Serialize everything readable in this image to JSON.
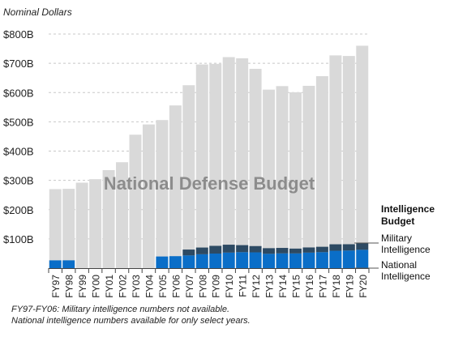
{
  "chart_data": {
    "type": "bar",
    "stacked": true,
    "title": "",
    "ylabel": "Nominal Dollars",
    "xlabel": "",
    "ylim": [
      0,
      800
    ],
    "yticks": [
      0,
      100,
      200,
      300,
      400,
      500,
      600,
      700,
      800
    ],
    "ytick_labels": [
      "",
      "$100B",
      "$200B",
      "$300B",
      "$400B",
      "$500B",
      "$600B",
      "$700B",
      "$800B"
    ],
    "grid": true,
    "categories": [
      "FY97",
      "FY98",
      "FY99",
      "FY00",
      "FY01",
      "FY02",
      "FY03",
      "FY04",
      "FY05",
      "FY06",
      "FY07",
      "FY08",
      "FY09",
      "FY10",
      "FY11",
      "FY12",
      "FY13",
      "FY14",
      "FY15",
      "FY16",
      "FY17",
      "FY18",
      "FY19",
      "FY20"
    ],
    "series": [
      {
        "name": "National Intelligence",
        "color": "#0a6ec8",
        "values": [
          26.6,
          26.7,
          null,
          null,
          null,
          null,
          null,
          null,
          39.8,
          40.9,
          43.5,
          47.5,
          49.8,
          53.1,
          54.6,
          53.9,
          49.0,
          50.5,
          50.3,
          53.0,
          54.6,
          59.4,
          60.2,
          62.7
        ]
      },
      {
        "name": "Military Intelligence",
        "color": "#2d4a63",
        "values": [
          null,
          null,
          null,
          null,
          null,
          null,
          null,
          null,
          null,
          null,
          20.0,
          22.9,
          26.4,
          27.0,
          24.0,
          21.5,
          19.2,
          18.6,
          16.5,
          17.7,
          18.4,
          22.1,
          21.5,
          23.1
        ]
      },
      {
        "name": "National Defense Budget",
        "color": "#d9d9d9",
        "values": [
          270,
          271,
          292,
          304,
          335,
          362,
          456,
          491,
          506,
          556,
          625,
          696,
          698,
          721,
          717,
          681,
          610,
          622,
          601,
          623,
          656,
          727,
          725,
          760
        ]
      }
    ],
    "annotation": "National Defense Budget",
    "legend_title": "Intelligence Budget",
    "legend_placement": "right"
  },
  "notes": [
    "FY97-FY06: Military intelligence numbers not available.",
    "National intelligence numbers available for only select years."
  ]
}
